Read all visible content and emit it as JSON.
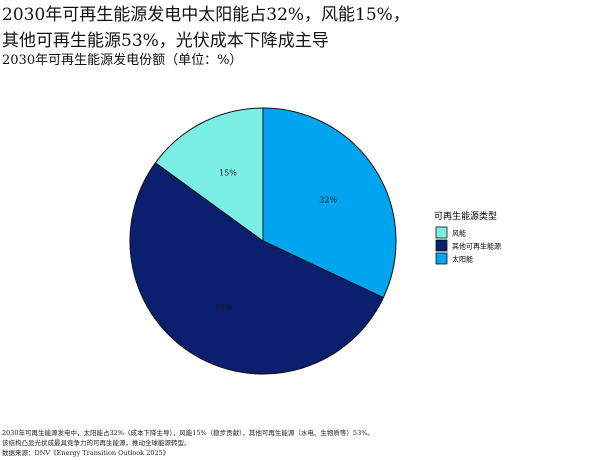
{
  "title_line1": "2030年可再生能源发电中太阳能占32%，风能15%，",
  "title_line2": "其他可再生能源53%，光伏成本下降成主导",
  "subtitle": "2030年可再生能源发电份额（单位：%）",
  "chart_data": {
    "type": "pie",
    "title": "2030年可再生能源发电份额（单位：%）",
    "legend_title": "可再生能源类型",
    "legend_position": "right",
    "slices": [
      {
        "label": "太阳能",
        "value": 32,
        "color": "#00a4ef"
      },
      {
        "label": "其他可再生能源",
        "value": 53,
        "color": "#0a1f6e"
      },
      {
        "label": "风能",
        "value": 15,
        "color": "#7beee4"
      }
    ],
    "legend_order": [
      "风能",
      "其他可再生能源",
      "太阳能"
    ],
    "data_labels": [
      "32%",
      "53%",
      "15%"
    ],
    "start": "12 o'clock",
    "direction": "clockwise"
  },
  "footnotes": [
    "2030年可再生能源发电中，太阳能占32%（成本下降主导），风能15%（稳步贡献），其他可再生能源（水电、生物质等）53%。",
    "该结构凸显光伏成最具竞争力的可再生能源，推动全球能源转型。",
    "数据来源：DNV《Energy Transition Outlook 2025》"
  ]
}
